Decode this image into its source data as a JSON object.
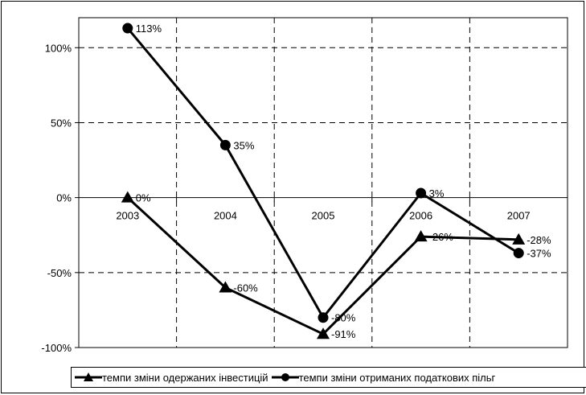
{
  "chart_data": {
    "type": "line",
    "categories": [
      "2003",
      "2004",
      "2005",
      "2006",
      "2007"
    ],
    "yticks": [
      "100%",
      "50%",
      "0%",
      "-50%",
      "-100%"
    ],
    "ylim": [
      -100,
      120
    ],
    "grid": true,
    "legend_position": "bottom",
    "series": [
      {
        "name": "темпи зміни одержаних інвестицій",
        "marker": "triangle",
        "color": "#000000",
        "values": [
          0,
          -60,
          -91,
          -26,
          -28
        ],
        "labels": [
          "0%",
          "-60%",
          "-91%",
          "-26%",
          "-28%"
        ]
      },
      {
        "name": "темпи зміни отриманих податкових пільг",
        "marker": "circle",
        "color": "#000000",
        "values": [
          113,
          35,
          -80,
          3,
          -37
        ],
        "labels": [
          "113%",
          "35%",
          "-80%",
          "3%",
          "-37%"
        ]
      }
    ]
  }
}
